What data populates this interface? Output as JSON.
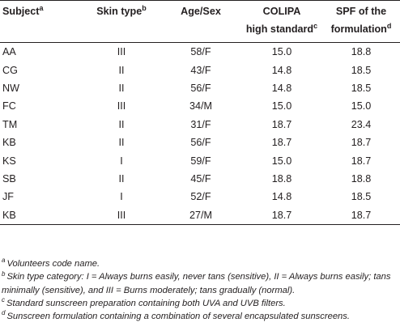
{
  "table": {
    "headers": {
      "subject": "Subject",
      "subject_sup": "a",
      "skin_type": "Skin type",
      "skin_type_sup": "b",
      "age_sex": "Age/Sex",
      "colipa_line1": "COLIPA",
      "colipa_line2": "high standard",
      "colipa_sup": "c",
      "spf_line1": "SPF of the",
      "spf_line2": "formulation",
      "spf_sup": "d"
    },
    "rows": [
      [
        "AA",
        "III",
        "58/F",
        "15.0",
        "18.8"
      ],
      [
        "CG",
        "II",
        "43/F",
        "14.8",
        "18.5"
      ],
      [
        "NW",
        "II",
        "56/F",
        "14.8",
        "18.5"
      ],
      [
        "FC",
        "III",
        "34/M",
        "15.0",
        "15.0"
      ],
      [
        "TM",
        "II",
        "31/F",
        "18.7",
        "23.4"
      ],
      [
        "KB",
        "II",
        "56/F",
        "18.7",
        "18.7"
      ],
      [
        "KS",
        "I",
        "59/F",
        "15.0",
        "18.7"
      ],
      [
        "SB",
        "II",
        "45/F",
        "18.8",
        "18.8"
      ],
      [
        "JF",
        "I",
        "52/F",
        "14.8",
        "18.5"
      ],
      [
        "KB",
        "III",
        "27/M",
        "18.7",
        "18.7"
      ]
    ]
  },
  "footnotes": [
    {
      "mark": "a",
      "text": "Volunteers code name."
    },
    {
      "mark": "b",
      "text": "Skin type category: I = Always burns easily, never tans (sensitive), II = Always burns easily; tans minimally (sensitive), and III = Burns moderately; tans gradually (normal)."
    },
    {
      "mark": "c",
      "text": "Standard sunscreen preparation containing both UVA and UVB filters."
    },
    {
      "mark": "d",
      "text": "Sunscreen formulation containing a combination of several encapsulated sunscreens."
    }
  ]
}
